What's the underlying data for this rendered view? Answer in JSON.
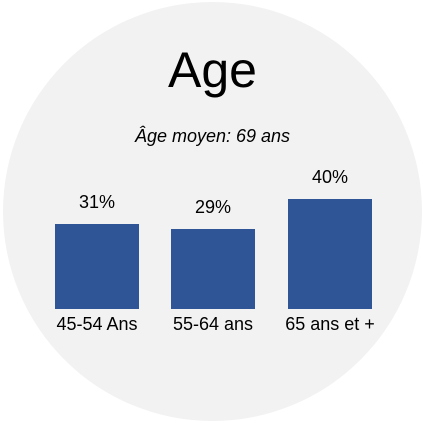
{
  "chart_data": {
    "type": "bar",
    "title": "Age",
    "subtitle": "Âge moyen: 69 ans",
    "categories": [
      "45-54 Ans",
      "55-64 ans",
      "65 ans et +"
    ],
    "values": [
      31,
      29,
      40
    ],
    "value_labels": [
      "31%",
      "29%",
      "40%"
    ],
    "color": "#2f5597"
  }
}
